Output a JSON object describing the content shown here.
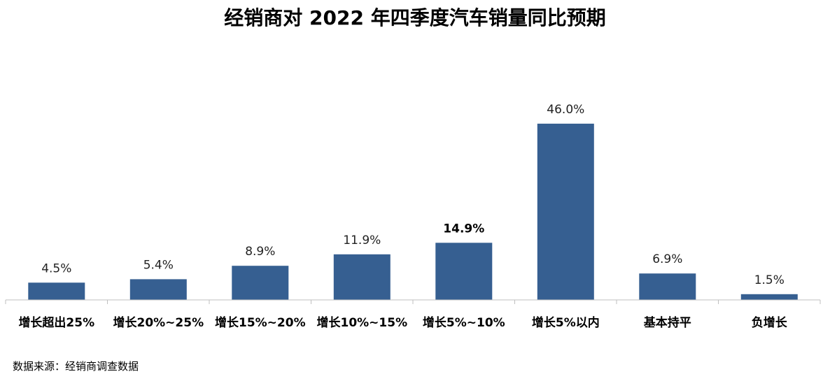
{
  "chart_data": {
    "type": "bar",
    "title": "经销商对 2022 年四季度汽车销量同比预期",
    "categories": [
      "增长超出25%",
      "增长20%~25%",
      "增长15%~20%",
      "增长10%~15%",
      "增长5%~10%",
      "增长5%以内",
      "基本持平",
      "负增长"
    ],
    "values": [
      4.5,
      5.4,
      8.9,
      11.9,
      14.9,
      46.0,
      6.9,
      1.5
    ],
    "data_labels": [
      "4.5%",
      "5.4%",
      "8.9%",
      "11.9%",
      "14.9%",
      "46.0%",
      "6.9%",
      "1.5%"
    ],
    "emphasized_label_index": 4,
    "ylim": [
      0,
      50
    ],
    "grid": false,
    "legend": "none",
    "bar_color": "#365f91",
    "axis_color": "#bfbfbf"
  },
  "source_note": "数据来源：经销商调查数据"
}
